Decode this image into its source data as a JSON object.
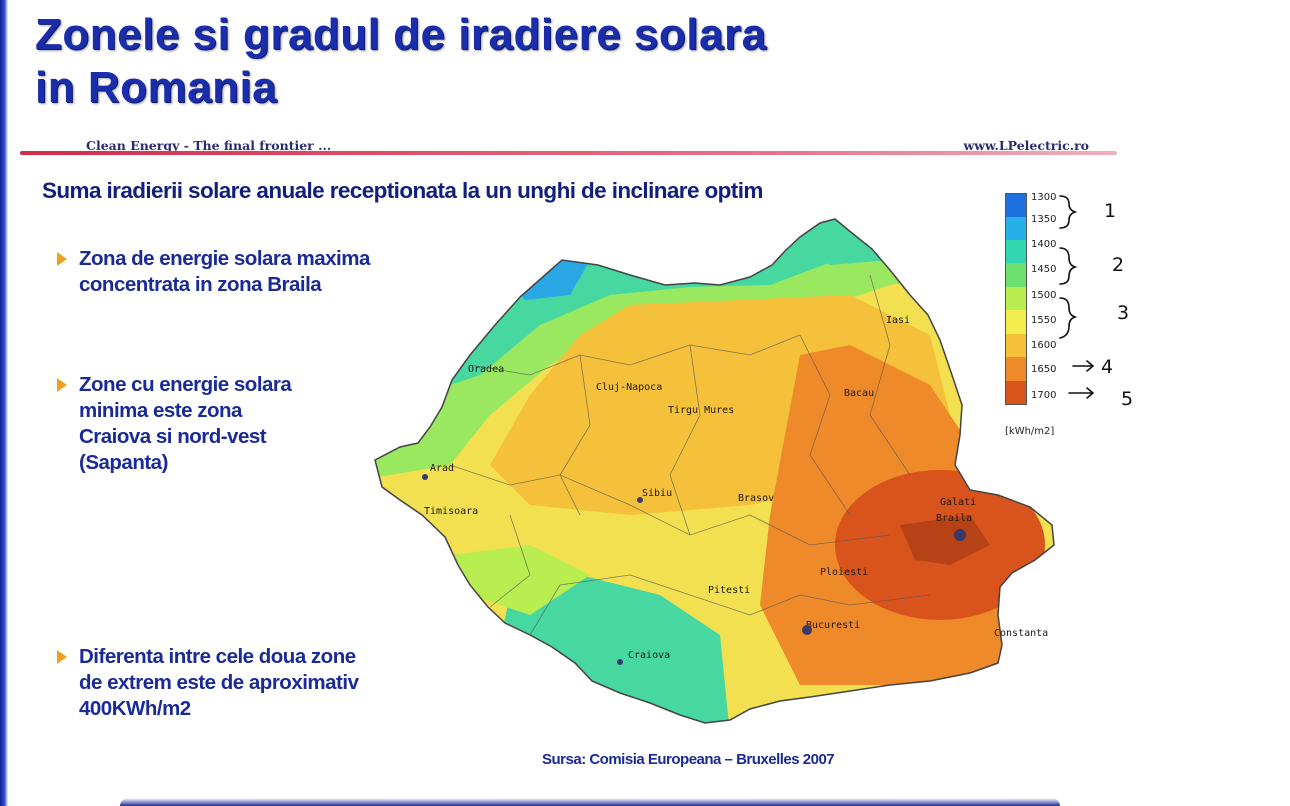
{
  "slide": {
    "title_line1": "Zonele si gradul de iradiere solara",
    "title_line2": "in Romania",
    "tagline": "Clean Energy - The final frontier ...",
    "website": "www.LPelectric.ro",
    "subtitle": "Suma iradierii solare anuale receptionata la un unghi de inclinare optim",
    "bullets": [
      {
        "lines": [
          "Zona de energie solara maxima",
          "concentrata in zona Braila"
        ]
      },
      {
        "lines": [
          "Zone cu energie solara",
          "minima este zona",
          "Craiova si nord-vest",
          "(Sapanta)"
        ]
      },
      {
        "lines": [
          "Diferenta intre cele doua zone",
          "de extrem este de aproximativ",
          "400KWh/m2"
        ]
      }
    ],
    "source": "Sursa: Comisia Europeana – Bruxelles 2007"
  },
  "legend": {
    "ticks": [
      "1300",
      "1350",
      "1400",
      "1450",
      "1500",
      "1550",
      "1600",
      "1650",
      "1700"
    ],
    "unit": "[kWh/m2]",
    "colors": [
      "#1e6fe0",
      "#27b0e8",
      "#33d6b0",
      "#6ee070",
      "#b8ee50",
      "#f2ee50",
      "#f5c03a",
      "#ee8a2a",
      "#d8541c"
    ]
  },
  "cities": [
    "Iasi",
    "Oradea",
    "Cluj-Napoca",
    "Bacau",
    "Tirgu Mures",
    "Arad",
    "Sibiu",
    "Brasov",
    "Galati",
    "Braila",
    "Timisoara",
    "Ploiesti",
    "Pitesti",
    "Bucuresti",
    "Constanta",
    "Craiova"
  ],
  "annotations": {
    "numbers": [
      "1",
      "2",
      "3",
      "4",
      "5"
    ]
  }
}
